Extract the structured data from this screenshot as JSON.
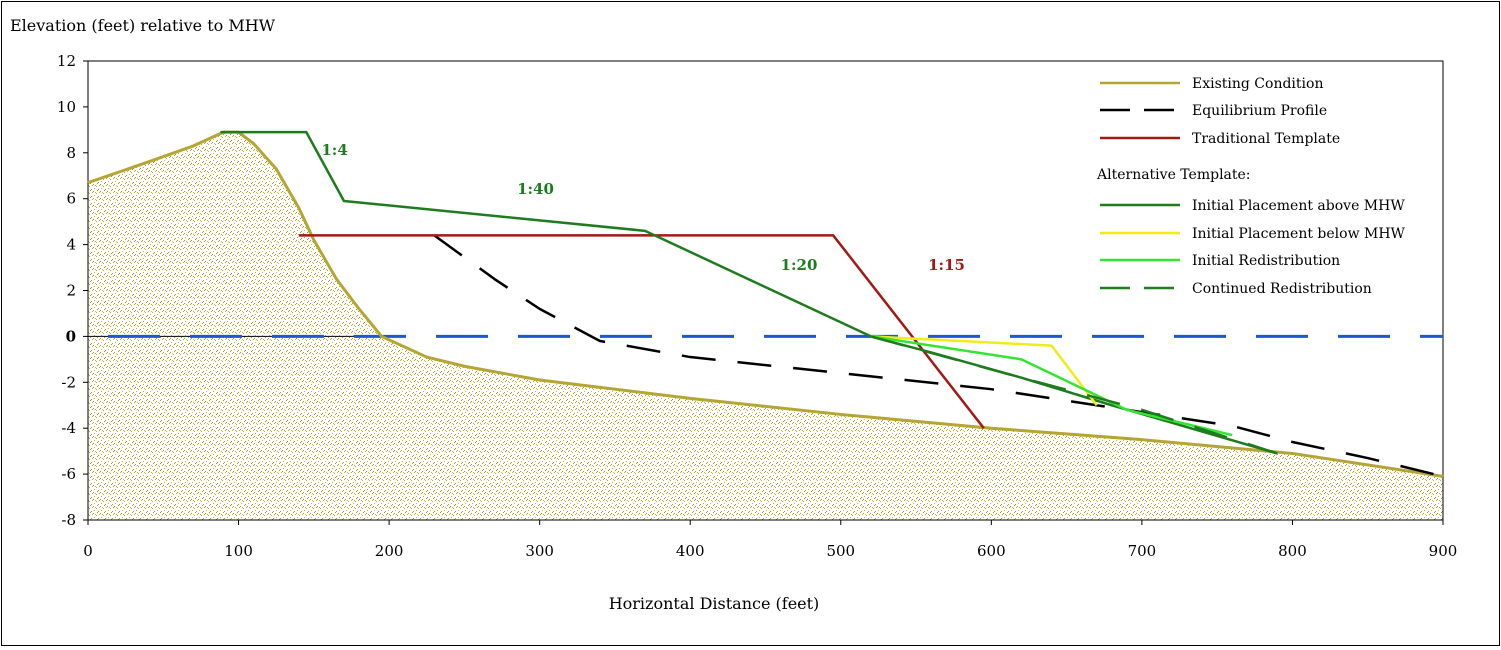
{
  "chart_data": {
    "type": "line",
    "title": "",
    "ylabel": "Elevation (feet) relative to MHW",
    "xlabel": "Horizontal Distance (feet)",
    "xlim": [
      0,
      900
    ],
    "ylim": [
      -8,
      12
    ],
    "x_ticks": [
      "0",
      "100",
      "200",
      "300",
      "400",
      "500",
      "600",
      "700",
      "800",
      "900"
    ],
    "y_ticks": [
      "12",
      "10",
      "8",
      "6",
      "4",
      "2",
      "0",
      "-2",
      "-4",
      "-6",
      "-8"
    ],
    "grid": false,
    "legend_position": "top-right",
    "legend_header": "Alternative Template:",
    "series": [
      {
        "name": "Existing Condition",
        "color": "#b5a533",
        "dash": "solid",
        "fill": "sand",
        "points": [
          [
            0,
            6.7
          ],
          [
            40,
            7.6
          ],
          [
            70,
            8.3
          ],
          [
            90,
            8.9
          ],
          [
            100,
            8.9
          ],
          [
            110,
            8.4
          ],
          [
            125,
            7.3
          ],
          [
            140,
            5.6
          ],
          [
            150,
            4.2
          ],
          [
            165,
            2.5
          ],
          [
            180,
            1.2
          ],
          [
            195,
            0.0
          ],
          [
            225,
            -0.9
          ],
          [
            250,
            -1.3
          ],
          [
            300,
            -1.9
          ],
          [
            400,
            -2.7
          ],
          [
            500,
            -3.4
          ],
          [
            600,
            -4.0
          ],
          [
            700,
            -4.5
          ],
          [
            800,
            -5.1
          ],
          [
            900,
            -6.1
          ]
        ]
      },
      {
        "name": "Equilibrium Profile",
        "color": "#000000",
        "dash": "dash",
        "points": [
          [
            230,
            4.4
          ],
          [
            270,
            2.5
          ],
          [
            300,
            1.2
          ],
          [
            340,
            -0.2
          ],
          [
            400,
            -0.9
          ],
          [
            500,
            -1.6
          ],
          [
            600,
            -2.3
          ],
          [
            700,
            -3.3
          ],
          [
            760,
            -3.9
          ],
          [
            800,
            -4.6
          ],
          [
            850,
            -5.3
          ],
          [
            900,
            -6.1
          ]
        ]
      },
      {
        "name": "Traditional Template",
        "color": "#a01b14",
        "dash": "solid",
        "points": [
          [
            140,
            4.4
          ],
          [
            495,
            4.4
          ],
          [
            595,
            -4.0
          ]
        ]
      },
      {
        "name": "Initial Placement above MHW",
        "color": "#1e7c1e",
        "dash": "solid",
        "points": [
          [
            88,
            8.9
          ],
          [
            145,
            8.9
          ],
          [
            170,
            5.9
          ],
          [
            370,
            4.6
          ],
          [
            520,
            0.0
          ],
          [
            560,
            -0.7
          ],
          [
            620,
            -1.8
          ],
          [
            680,
            -3.0
          ],
          [
            790,
            -5.1
          ]
        ]
      },
      {
        "name": "Initial Placement below MHW",
        "color": "#f0ec1a",
        "dash": "solid",
        "points": [
          [
            520,
            0.0
          ],
          [
            640,
            -0.4
          ],
          [
            670,
            -3.0
          ]
        ]
      },
      {
        "name": "Initial Redistribution",
        "color": "#33e533",
        "dash": "solid",
        "points": [
          [
            520,
            0.0
          ],
          [
            620,
            -1.0
          ],
          [
            690,
            -3.2
          ],
          [
            760,
            -4.3
          ]
        ]
      },
      {
        "name": "Continued Redistribution",
        "color": "#1e7c1e",
        "dash": "dash",
        "points": [
          [
            520,
            0.0
          ],
          [
            620,
            -1.8
          ],
          [
            700,
            -3.2
          ],
          [
            790,
            -5.1
          ]
        ]
      }
    ],
    "mhw_line": {
      "y": 0,
      "color": "#1e56d6",
      "dash": "dash"
    },
    "annotations": [
      {
        "text": "1:4",
        "x": 155,
        "y": 7.9,
        "color": "#1e7c1e"
      },
      {
        "text": "1:40",
        "x": 285,
        "y": 6.2,
        "color": "#1e7c1e"
      },
      {
        "text": "1:20",
        "x": 460,
        "y": 2.9,
        "color": "#1e7c1e"
      },
      {
        "text": "1:15",
        "x": 558,
        "y": 2.9,
        "color": "#a01b14"
      }
    ],
    "legend": [
      {
        "label": "Existing Condition",
        "color": "#b5a533",
        "dash": "solid"
      },
      {
        "label": "Equilibrium Profile",
        "color": "#000000",
        "dash": "dash"
      },
      {
        "label": "Traditional Template",
        "color": "#a01b14",
        "dash": "solid"
      },
      {
        "label": "Initial Placement above MHW",
        "color": "#1e7c1e",
        "dash": "solid"
      },
      {
        "label": "Initial Placement below MHW",
        "color": "#f0ec1a",
        "dash": "solid"
      },
      {
        "label": "Initial Redistribution",
        "color": "#33e533",
        "dash": "solid"
      },
      {
        "label": "Continued Redistribution",
        "color": "#1e7c1e",
        "dash": "dash"
      }
    ]
  }
}
